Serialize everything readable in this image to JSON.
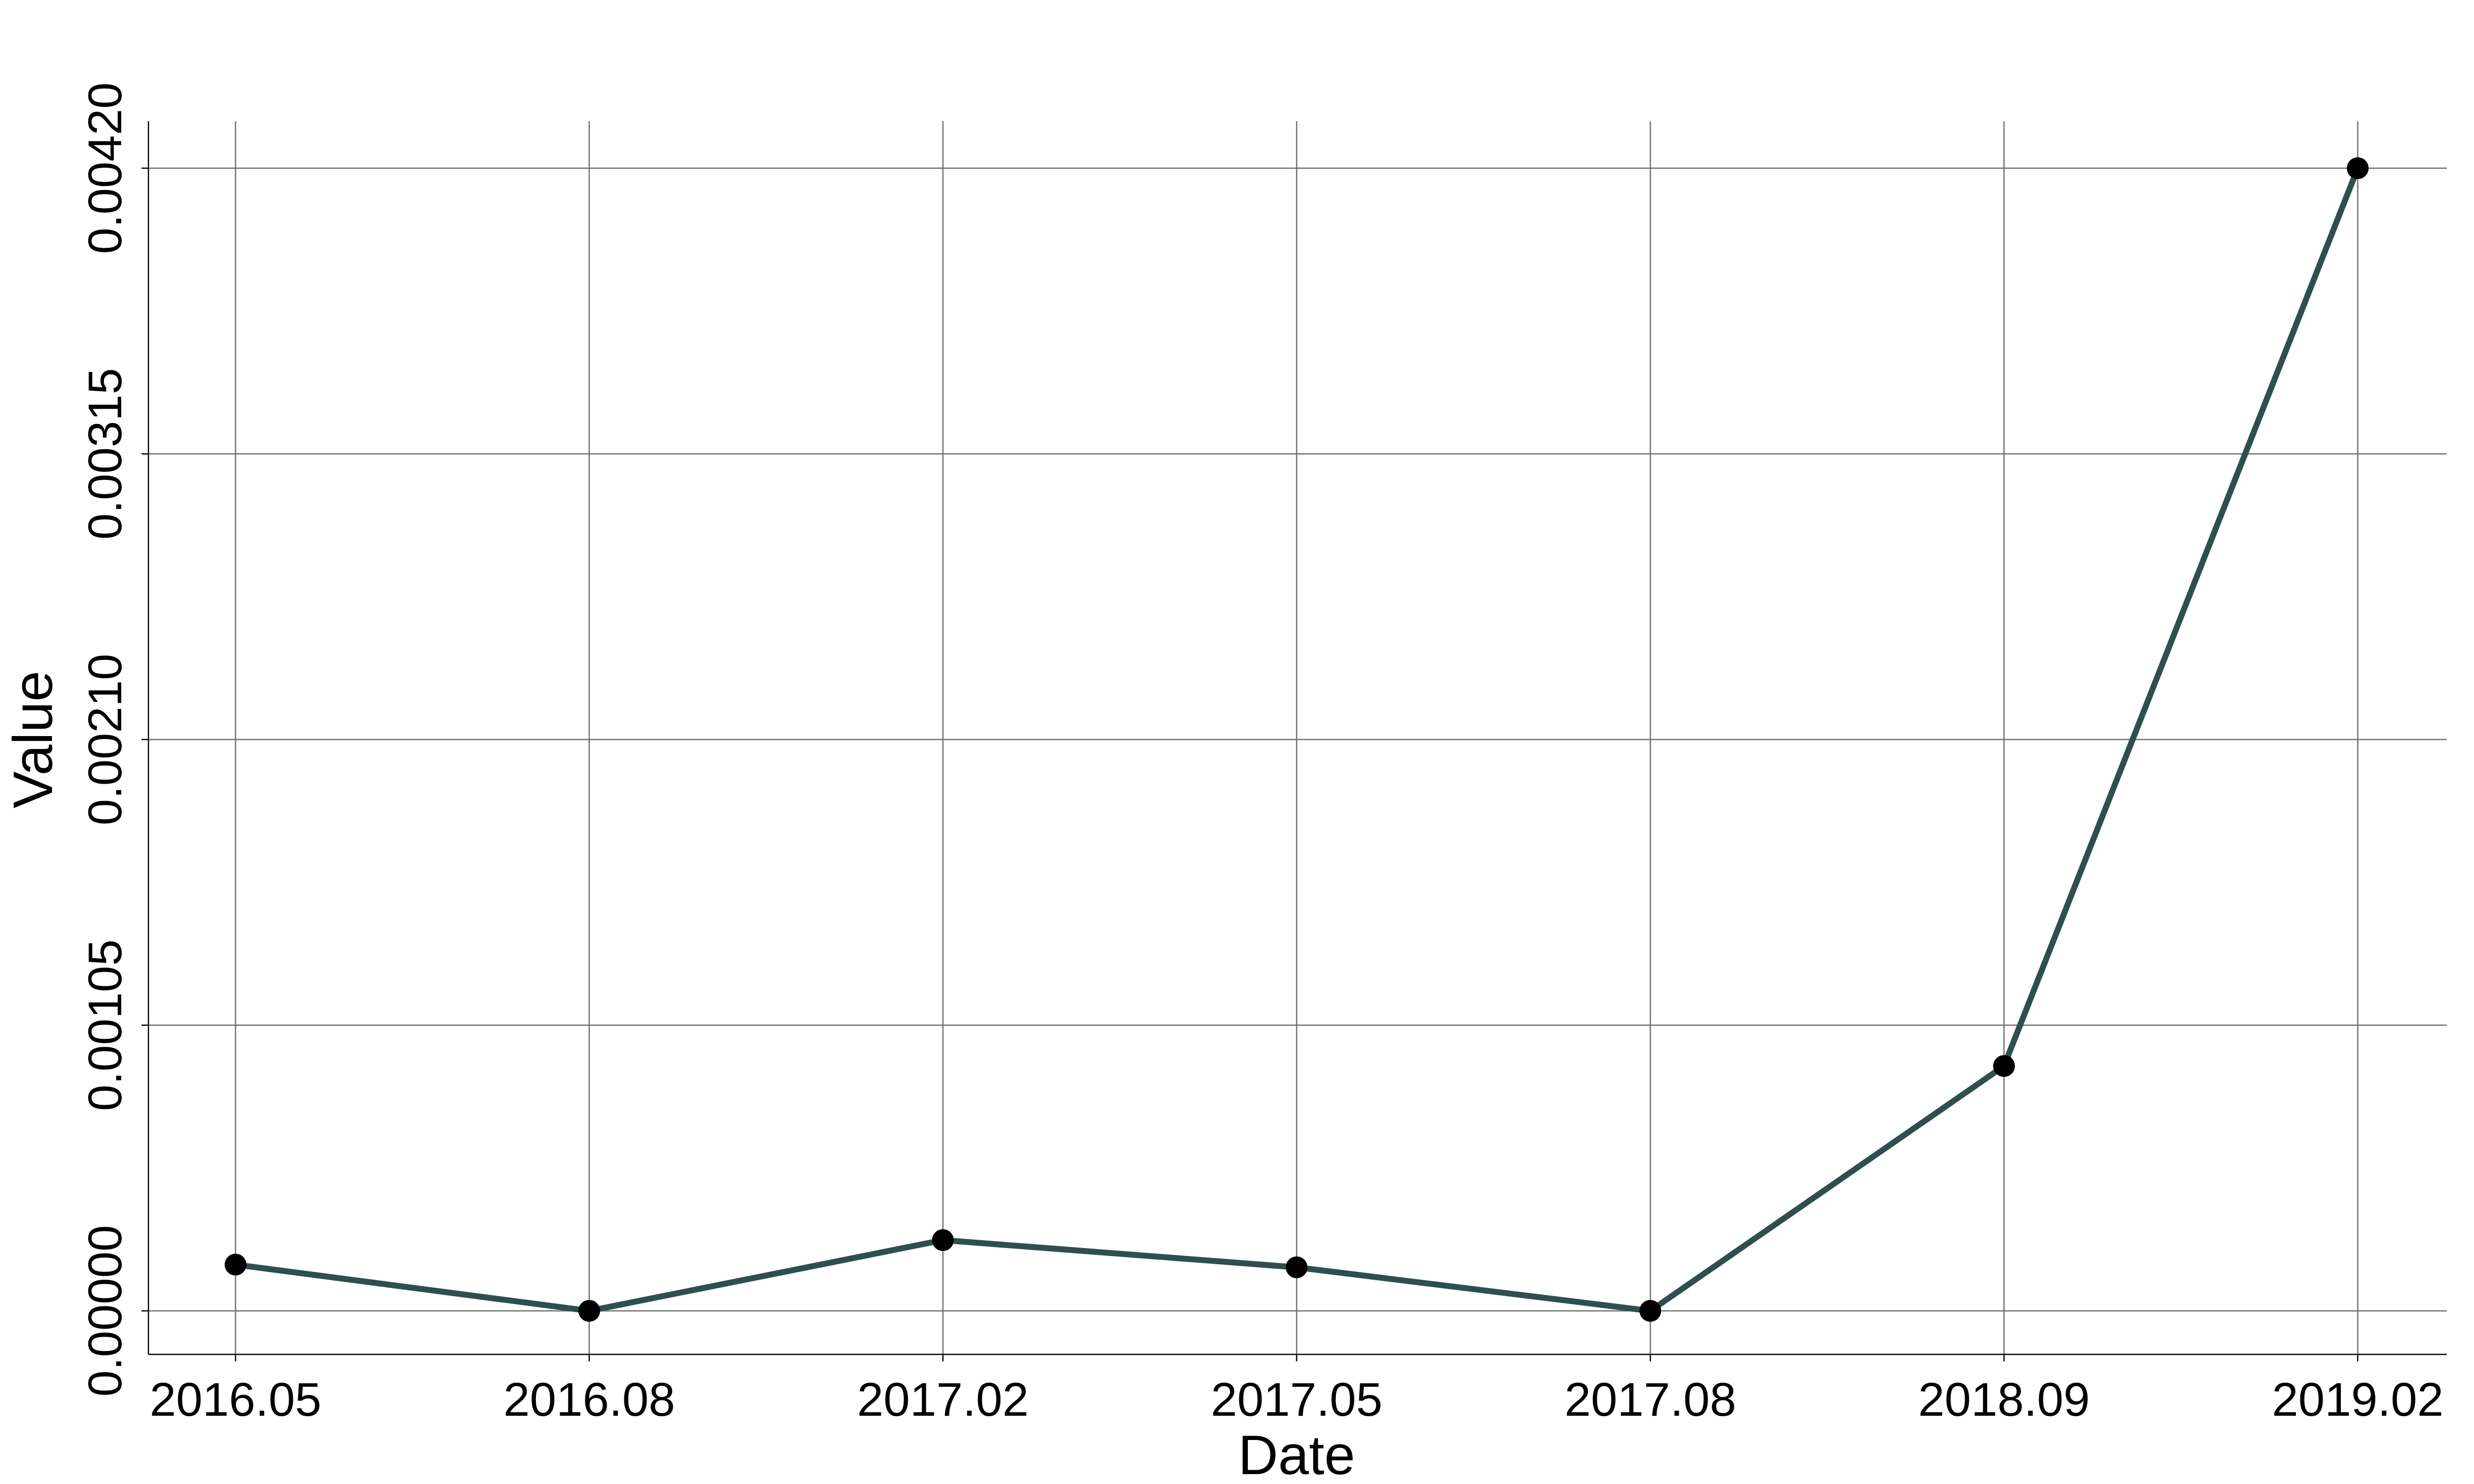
{
  "chart_data": {
    "type": "line",
    "title": "",
    "xlabel": "Date",
    "ylabel": "Value",
    "categories": [
      "2016.05",
      "2016.08",
      "2017.02",
      "2017.05",
      "2017.08",
      "2018.09",
      "2019.02"
    ],
    "series": [
      {
        "values": [
          0.00017,
          0.0,
          0.00026,
          0.00016,
          0.0,
          0.0009,
          0.0042
        ],
        "color": "#2f4f4f",
        "marker_color": "#000000"
      }
    ],
    "y_ticks": [
      "0.00000",
      "0.00105",
      "0.00210",
      "0.00315",
      "0.00420"
    ],
    "ylim": [
      0,
      0.0042
    ],
    "grid": true,
    "legend": "none"
  }
}
